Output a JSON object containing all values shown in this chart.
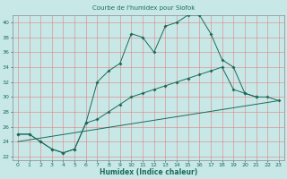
{
  "title": "Courbe de l'humidex pour Siofok",
  "xlabel": "Humidex (Indice chaleur)",
  "bg_color": "#c8e8e8",
  "grid_color": "#e08080",
  "line_color": "#1a6b5a",
  "xlim": [
    -0.5,
    23.5
  ],
  "ylim": [
    21.5,
    41.0
  ],
  "yticks": [
    22,
    24,
    26,
    28,
    30,
    32,
    34,
    36,
    38,
    40
  ],
  "xticks": [
    0,
    1,
    2,
    3,
    4,
    5,
    6,
    7,
    8,
    9,
    10,
    11,
    12,
    13,
    14,
    15,
    16,
    17,
    18,
    19,
    20,
    21,
    22,
    23
  ],
  "line1_x": [
    0,
    1,
    2,
    3,
    4,
    5,
    6,
    7,
    8,
    9,
    10,
    11,
    12,
    13,
    14,
    15,
    16,
    17,
    18,
    19,
    20,
    21
  ],
  "line1_y": [
    25.0,
    25.0,
    24.0,
    23.0,
    22.5,
    23.0,
    26.5,
    32.0,
    33.5,
    34.5,
    38.5,
    38.0,
    36.0,
    39.5,
    40.0,
    41.0,
    41.0,
    38.5,
    35.0,
    34.0,
    30.5,
    30.0
  ],
  "line2_x": [
    0,
    1,
    2,
    3,
    4,
    5,
    6,
    7,
    8,
    9,
    10,
    11,
    12,
    13,
    14,
    15,
    16,
    17,
    18,
    19,
    20,
    21,
    22,
    23
  ],
  "line2_y": [
    25.0,
    25.0,
    24.0,
    23.0,
    22.5,
    23.0,
    26.5,
    27.0,
    28.0,
    29.0,
    30.0,
    30.5,
    31.0,
    31.5,
    32.0,
    32.5,
    33.0,
    33.5,
    34.0,
    31.0,
    30.5,
    30.0,
    30.0,
    29.5
  ],
  "line3_x": [
    0,
    23
  ],
  "line3_y": [
    24.0,
    29.5
  ]
}
